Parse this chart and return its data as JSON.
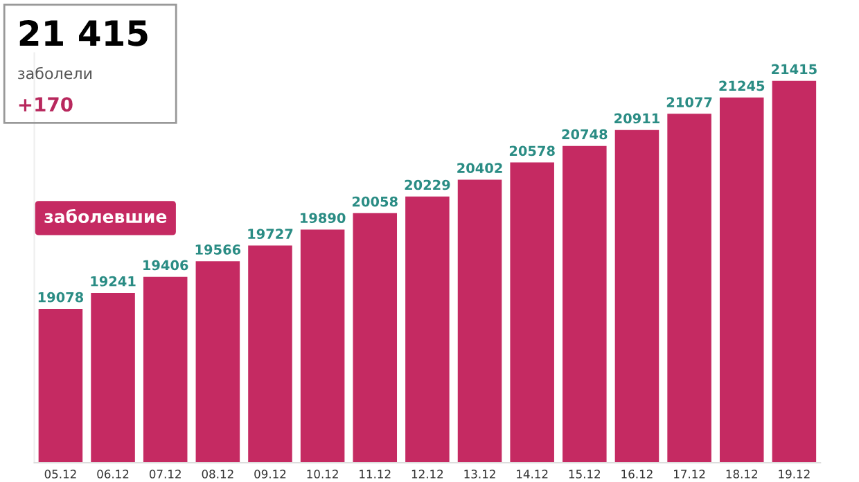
{
  "chart_data": {
    "type": "bar",
    "categories": [
      "05.12",
      "06.12",
      "07.12",
      "08.12",
      "09.12",
      "10.12",
      "11.12",
      "12.12",
      "13.12",
      "14.12",
      "15.12",
      "16.12",
      "17.12",
      "18.12",
      "19.12"
    ],
    "series": [
      {
        "name": "заболевшие",
        "color": "#c52a62",
        "values": [
          19078,
          19241,
          19406,
          19566,
          19727,
          19890,
          20058,
          20229,
          20402,
          20578,
          20748,
          20911,
          21077,
          21245,
          21415
        ]
      }
    ],
    "ylim": [
      17500,
      21700
    ],
    "data_labels": true,
    "tick_labels": "x",
    "grid": false,
    "legend": "top left",
    "annotations": [
      "21 415",
      "заболели",
      "+170"
    ]
  }
}
